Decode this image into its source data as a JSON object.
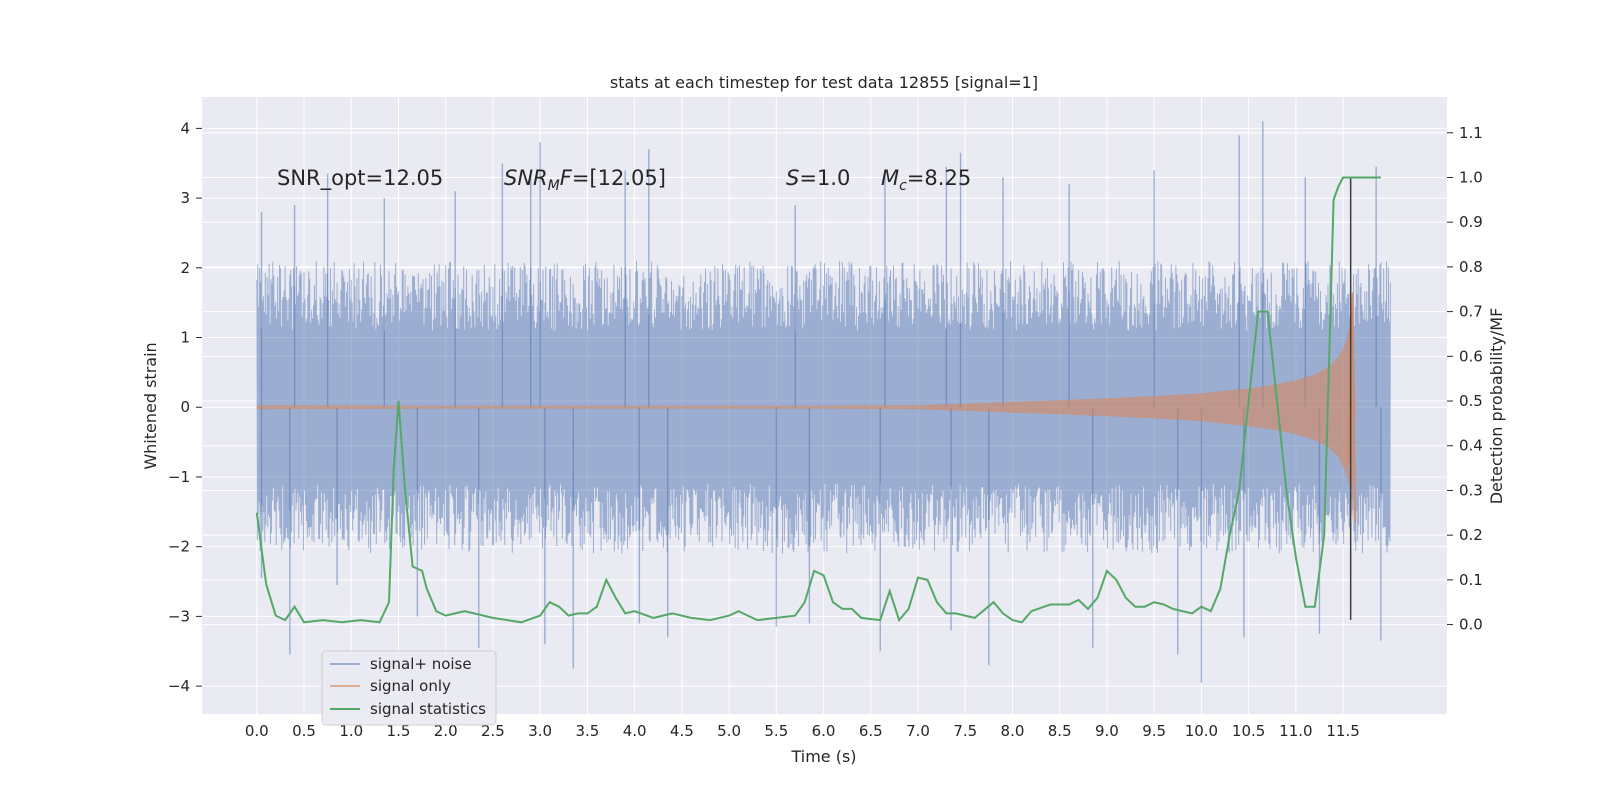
{
  "chart_data": {
    "type": "line",
    "title": "stats at each timestep for test data 12855 [signal=1]",
    "xlabel": "Time (s)",
    "ylabel_left": "Whitened strain",
    "ylabel_right": "Detection probability/MF",
    "xlim": [
      -0.58,
      12.6
    ],
    "ylim_left": [
      -4.4,
      4.45
    ],
    "ylim_right": [
      -0.2,
      1.18
    ],
    "x_ticks": [
      "0.0",
      "0.5",
      "1.0",
      "1.5",
      "2.0",
      "2.5",
      "3.0",
      "3.5",
      "4.0",
      "4.5",
      "5.0",
      "5.5",
      "6.0",
      "6.5",
      "7.0",
      "7.5",
      "8.0",
      "8.5",
      "9.0",
      "9.5",
      "10.0",
      "10.5",
      "11.0",
      "11.5"
    ],
    "y_ticks_left": [
      "4",
      "3",
      "2",
      "1",
      "0",
      "−1",
      "−2",
      "−3",
      "−4"
    ],
    "y_ticks_right": [
      "1.1",
      "1.0",
      "0.9",
      "0.8",
      "0.7",
      "0.6",
      "0.5",
      "0.4",
      "0.3",
      "0.2",
      "0.1",
      "0.0"
    ],
    "grid": true,
    "legend_position": "bottom-left",
    "series": [
      {
        "name": "signal+ noise",
        "color": "#4C72B0",
        "axis": "left",
        "description_x_range": [
          0.0,
          12.0
        ],
        "typical_band": [
          -2.0,
          2.0
        ],
        "peak_spikes": [
          [
            0.05,
            2.8
          ],
          [
            0.4,
            2.9
          ],
          [
            0.75,
            3.35
          ],
          [
            1.35,
            3.0
          ],
          [
            2.1,
            3.1
          ],
          [
            2.6,
            3.5
          ],
          [
            2.9,
            3.4
          ],
          [
            3.0,
            3.8
          ],
          [
            3.9,
            3.4
          ],
          [
            4.15,
            3.7
          ],
          [
            5.7,
            2.9
          ],
          [
            6.65,
            3.35
          ],
          [
            7.3,
            3.45
          ],
          [
            7.45,
            3.65
          ],
          [
            7.9,
            3.3
          ],
          [
            8.6,
            3.2
          ],
          [
            9.5,
            3.4
          ],
          [
            10.4,
            3.9
          ],
          [
            10.65,
            4.1
          ],
          [
            11.1,
            3.3
          ],
          [
            11.85,
            3.45
          ]
        ],
        "trough_spikes": [
          [
            0.05,
            -2.45
          ],
          [
            0.35,
            -3.55
          ],
          [
            0.85,
            -2.55
          ],
          [
            1.7,
            -3.0
          ],
          [
            2.35,
            -3.45
          ],
          [
            3.05,
            -3.4
          ],
          [
            3.35,
            -3.75
          ],
          [
            4.05,
            -3.1
          ],
          [
            4.35,
            -3.3
          ],
          [
            5.5,
            -3.15
          ],
          [
            5.85,
            -3.1
          ],
          [
            6.6,
            -3.5
          ],
          [
            7.35,
            -3.2
          ],
          [
            7.75,
            -3.7
          ],
          [
            8.85,
            -3.45
          ],
          [
            9.75,
            -3.55
          ],
          [
            10.0,
            -3.95
          ],
          [
            10.45,
            -3.3
          ],
          [
            11.25,
            -3.25
          ],
          [
            11.9,
            -3.35
          ]
        ]
      },
      {
        "name": "signal only",
        "color": "#DD8452",
        "axis": "left",
        "envelope": [
          [
            0.0,
            0.03
          ],
          [
            2.0,
            0.02
          ],
          [
            4.0,
            0.02
          ],
          [
            6.0,
            0.02
          ],
          [
            7.0,
            0.03
          ],
          [
            7.5,
            0.05
          ],
          [
            8.0,
            0.08
          ],
          [
            8.5,
            0.1
          ],
          [
            9.0,
            0.13
          ],
          [
            9.5,
            0.16
          ],
          [
            10.0,
            0.2
          ],
          [
            10.5,
            0.27
          ],
          [
            10.8,
            0.33
          ],
          [
            11.0,
            0.39
          ],
          [
            11.2,
            0.47
          ],
          [
            11.35,
            0.58
          ],
          [
            11.45,
            0.72
          ],
          [
            11.52,
            0.9
          ],
          [
            11.57,
            1.15
          ],
          [
            11.6,
            1.65
          ],
          [
            11.63,
            0.0
          ],
          [
            12.0,
            0.0
          ]
        ],
        "final_chirp": [
          [
            11.55,
            -0.8
          ],
          [
            11.6,
            1.65
          ],
          [
            11.63,
            -1.65
          ]
        ]
      },
      {
        "name": "signal statistics",
        "color": "#55A868",
        "axis": "right",
        "x": [
          0.0,
          0.1,
          0.2,
          0.3,
          0.4,
          0.5,
          0.7,
          0.9,
          1.1,
          1.3,
          1.4,
          1.45,
          1.5,
          1.57,
          1.65,
          1.75,
          1.8,
          1.9,
          2.0,
          2.1,
          2.2,
          2.3,
          2.5,
          2.8,
          3.0,
          3.1,
          3.2,
          3.3,
          3.4,
          3.5,
          3.6,
          3.7,
          3.8,
          3.9,
          4.0,
          4.2,
          4.4,
          4.6,
          4.8,
          5.0,
          5.1,
          5.3,
          5.5,
          5.7,
          5.8,
          5.9,
          6.0,
          6.1,
          6.2,
          6.3,
          6.4,
          6.6,
          6.7,
          6.8,
          6.9,
          7.0,
          7.1,
          7.2,
          7.3,
          7.4,
          7.6,
          7.8,
          7.9,
          8.0,
          8.1,
          8.2,
          8.4,
          8.6,
          8.7,
          8.8,
          8.9,
          9.0,
          9.1,
          9.2,
          9.3,
          9.4,
          9.5,
          9.6,
          9.7,
          9.8,
          9.9,
          10.0,
          10.1,
          10.2,
          10.3,
          10.4,
          10.5,
          10.6,
          10.7,
          10.8,
          10.9,
          11.0,
          11.1,
          11.2,
          11.3,
          11.4,
          11.45,
          11.5,
          11.55,
          11.6,
          11.65,
          11.7,
          11.8,
          11.9
        ],
        "values": [
          0.25,
          0.09,
          0.02,
          0.01,
          0.04,
          0.005,
          0.01,
          0.005,
          0.01,
          0.005,
          0.05,
          0.35,
          0.5,
          0.3,
          0.13,
          0.12,
          0.08,
          0.03,
          0.02,
          0.025,
          0.03,
          0.025,
          0.015,
          0.005,
          0.02,
          0.05,
          0.04,
          0.02,
          0.025,
          0.025,
          0.04,
          0.1,
          0.06,
          0.025,
          0.03,
          0.015,
          0.025,
          0.015,
          0.01,
          0.02,
          0.03,
          0.01,
          0.015,
          0.02,
          0.05,
          0.12,
          0.11,
          0.05,
          0.035,
          0.035,
          0.015,
          0.01,
          0.075,
          0.01,
          0.035,
          0.105,
          0.1,
          0.05,
          0.025,
          0.025,
          0.015,
          0.05,
          0.025,
          0.01,
          0.005,
          0.03,
          0.045,
          0.045,
          0.055,
          0.035,
          0.06,
          0.12,
          0.1,
          0.06,
          0.04,
          0.04,
          0.05,
          0.045,
          0.035,
          0.03,
          0.025,
          0.04,
          0.03,
          0.08,
          0.2,
          0.3,
          0.5,
          0.7,
          0.7,
          0.5,
          0.3,
          0.15,
          0.04,
          0.04,
          0.2,
          0.95,
          0.98,
          1.0,
          1.0,
          1.0,
          1.0,
          1.0,
          1.0,
          1.0
        ]
      }
    ],
    "annotations": [
      {
        "id": "snr-opt",
        "text": "SNR_opt=12.05"
      },
      {
        "id": "snr-mf",
        "prefix": "SNR",
        "sub": "M",
        "suffix": "F=[12.05]"
      },
      {
        "id": "s-val",
        "prefix": "S",
        "suffix": "=1.0"
      },
      {
        "id": "mc-val",
        "prefix": "M",
        "sub": "c",
        "suffix": "=8.25"
      }
    ],
    "vertical_marker": {
      "x": 11.58,
      "color": "#3b3b3b"
    }
  }
}
